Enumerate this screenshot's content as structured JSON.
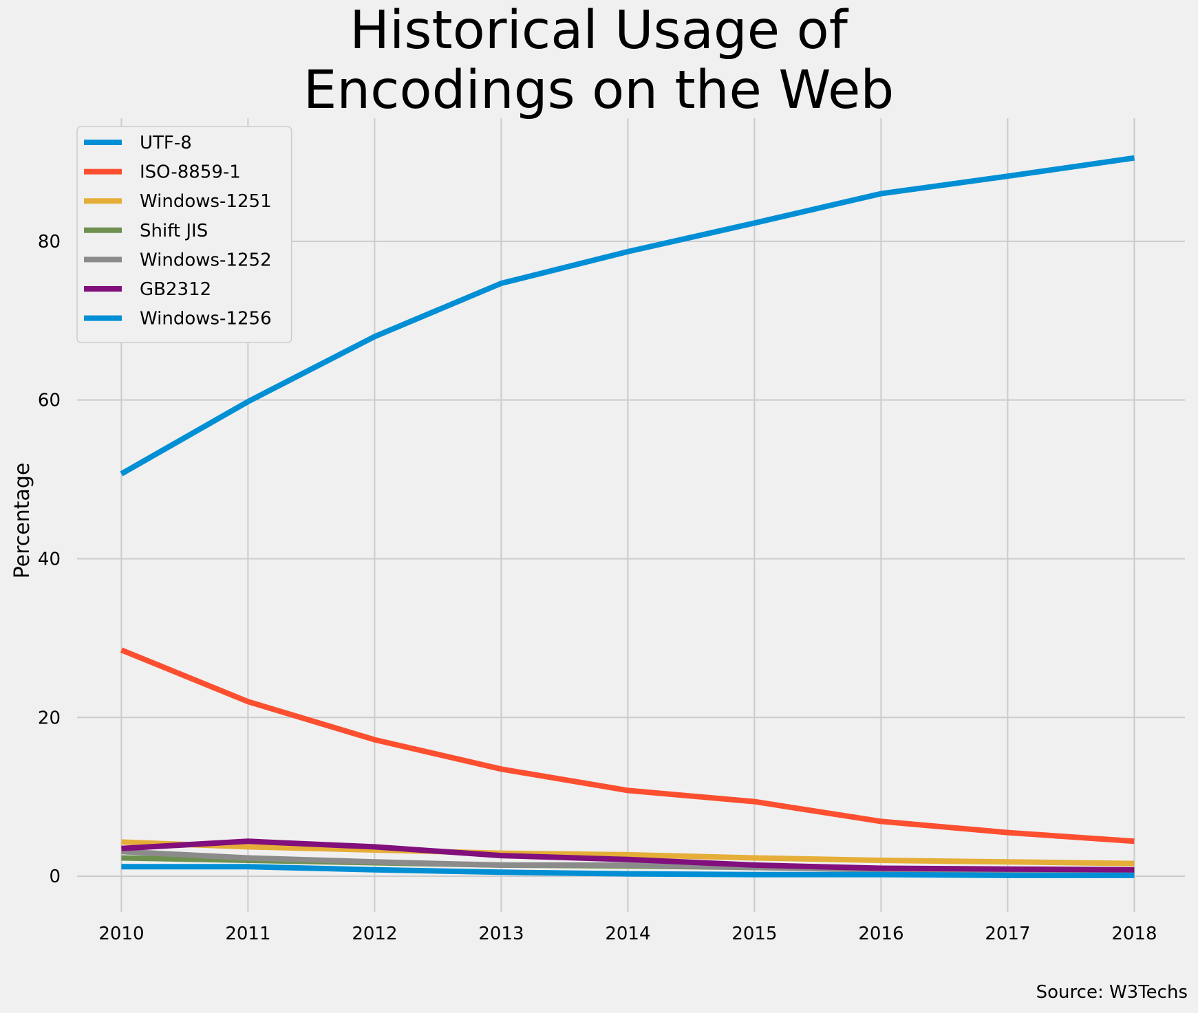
{
  "chart_data": {
    "type": "line",
    "title": [
      "Historical Usage of",
      "Encodings on the Web"
    ],
    "xlabel": "",
    "ylabel": "Percentage",
    "source": "Source: W3Techs",
    "x": [
      2010,
      2011,
      2012,
      2013,
      2014,
      2015,
      2016,
      2017,
      2018
    ],
    "x_ticks": [
      "2010",
      "2011",
      "2012",
      "2013",
      "2014",
      "2015",
      "2016",
      "2017",
      "2018"
    ],
    "y_ticks": [
      "0",
      "20",
      "40",
      "60",
      "80"
    ],
    "y_tick_values": [
      0,
      20,
      40,
      60,
      80
    ],
    "xlim": [
      2009.65,
      2018.4
    ],
    "ylim": [
      -4.5,
      95.5
    ],
    "grid": true,
    "legend_position": "upper-left",
    "series": [
      {
        "name": "UTF-8",
        "color": "#008fd5",
        "values": [
          50.7,
          59.8,
          68.0,
          74.7,
          78.7,
          82.3,
          86.0,
          88.2,
          90.5
        ]
      },
      {
        "name": "ISO-8859-1",
        "color": "#fc4f30",
        "values": [
          28.5,
          22.0,
          17.2,
          13.5,
          10.8,
          9.4,
          6.9,
          5.5,
          4.4
        ]
      },
      {
        "name": "Windows-1251",
        "color": "#e5ae38",
        "values": [
          4.3,
          3.7,
          3.3,
          2.9,
          2.7,
          2.3,
          2.0,
          1.8,
          1.6
        ]
      },
      {
        "name": "Shift JIS",
        "color": "#6d904f",
        "values": [
          2.3,
          2.0,
          1.7,
          1.4,
          1.3,
          1.1,
          0.9,
          0.8,
          0.7
        ]
      },
      {
        "name": "Windows-1252",
        "color": "#8b8b8b",
        "values": [
          3.1,
          2.3,
          1.8,
          1.4,
          1.4,
          1.1,
          0.8,
          0.7,
          0.5
        ]
      },
      {
        "name": "GB2312",
        "color": "#810f7c",
        "values": [
          3.5,
          4.4,
          3.7,
          2.6,
          2.1,
          1.4,
          1.0,
          0.9,
          0.8
        ]
      },
      {
        "name": "Windows-1256",
        "color": "#008fd5",
        "values": [
          1.2,
          1.2,
          0.8,
          0.5,
          0.3,
          0.2,
          0.2,
          0.1,
          0.1
        ]
      }
    ]
  }
}
